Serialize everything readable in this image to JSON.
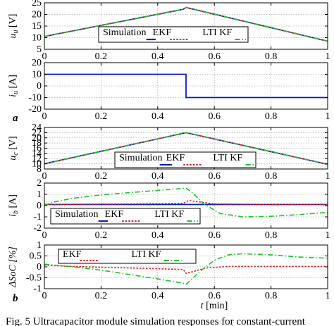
{
  "colors": {
    "simulation": "#0b1fb8",
    "ekf": "#e02020",
    "lti_kf": "#1fbf2f",
    "grid": "#b0b0b0"
  },
  "panel_letters": {
    "a": "a",
    "b": "b"
  },
  "caption": "Fig. 5  Ultracapacitor module simulation responses for constant-current",
  "chart_data": [
    {
      "type": "line",
      "ylabel": "u_u [V]",
      "ylabel_main": "u",
      "ylabel_sub": "u",
      "ylabel_unit": " [V]",
      "xlim": [
        0,
        1
      ],
      "ylim": [
        5,
        25
      ],
      "xticks": [
        "0",
        "0.2",
        "0.4",
        "0.6",
        "0.8",
        "1"
      ],
      "yticks": [
        "5",
        "10",
        "15",
        "20",
        "25"
      ],
      "grid": true,
      "legend": "center",
      "series": [
        {
          "name": "Simulation",
          "style": "solid",
          "x": [
            0,
            0.49,
            0.5,
            1
          ],
          "y": [
            10.5,
            22.2,
            23.0,
            8.5
          ]
        },
        {
          "name": "EKF",
          "style": "dotted",
          "x": [
            0,
            0.49,
            0.5,
            1
          ],
          "y": [
            10.5,
            22.2,
            23.0,
            8.5
          ]
        },
        {
          "name": "LTI KF",
          "style": "dashdot",
          "x": [
            0,
            0.49,
            0.5,
            1
          ],
          "y": [
            10.5,
            22.2,
            23.0,
            8.5
          ]
        }
      ]
    },
    {
      "type": "line",
      "ylabel": "i_u [A]",
      "ylabel_main": "i",
      "ylabel_sub": "u",
      "ylabel_unit": " [A]",
      "xlim": [
        0,
        1
      ],
      "ylim": [
        -20,
        20
      ],
      "xticks": [
        "0",
        "0.2",
        "0.4",
        "0.6",
        "0.8",
        "1"
      ],
      "yticks": [
        "-20",
        "-10",
        "0",
        "10",
        "20"
      ],
      "grid": true,
      "legend": "none",
      "series": [
        {
          "style": "solid",
          "x": [
            0,
            0.5,
            0.5,
            1
          ],
          "y": [
            10,
            10,
            -10,
            -10
          ]
        }
      ]
    },
    {
      "type": "line",
      "ylabel": "u_c [V]",
      "ylabel_main": "u",
      "ylabel_sub": "c",
      "ylabel_unit": " [V]",
      "xlim": [
        0,
        1
      ],
      "ylim": [
        8,
        24
      ],
      "xticks": [
        "0",
        "0.2",
        "0.4",
        "0.6",
        "0.8",
        "1"
      ],
      "yticks": [
        "8",
        "10",
        "12",
        "14",
        "16",
        "18",
        "20",
        "22",
        "24"
      ],
      "grid": true,
      "legend": "bottom-center",
      "series": [
        {
          "name": "Simulation",
          "style": "solid",
          "x": [
            0,
            0.5,
            1
          ],
          "y": [
            10,
            22,
            9.8
          ]
        },
        {
          "name": "EKF",
          "style": "dotted",
          "x": [
            0,
            0.5,
            1
          ],
          "y": [
            10,
            22,
            9.8
          ]
        },
        {
          "name": "LTI KF",
          "style": "dashdot",
          "x": [
            0,
            0.5,
            1
          ],
          "y": [
            10,
            22,
            9.8
          ]
        }
      ]
    },
    {
      "type": "line",
      "ylabel": "i_b [A]",
      "ylabel_main": "i",
      "ylabel_sub": "b",
      "ylabel_unit": " [A]",
      "xlim": [
        0,
        1
      ],
      "ylim": [
        -2,
        2
      ],
      "xticks": [
        "0",
        "0.2",
        "0.4",
        "0.6",
        "0.8",
        "1"
      ],
      "yticks": [
        "-2",
        "-1",
        "0",
        "1",
        "2"
      ],
      "grid": true,
      "legend": "bottom-left",
      "series": [
        {
          "name": "Simulation",
          "style": "solid",
          "x": [
            0,
            1
          ],
          "y": [
            0.1,
            0.1
          ]
        },
        {
          "name": "EKF",
          "style": "dotted",
          "x": [
            0,
            0.1,
            0.3,
            0.49,
            0.51,
            0.6,
            0.8,
            1
          ],
          "y": [
            0.1,
            0.12,
            0.15,
            0.2,
            0.45,
            0.15,
            0.1,
            0.1
          ]
        },
        {
          "name": "LTI KF",
          "style": "dashdot",
          "x": [
            0,
            0.03,
            0.1,
            0.2,
            0.3,
            0.4,
            0.5,
            0.52,
            0.56,
            0.62,
            0.7,
            0.8,
            0.9,
            1
          ],
          "y": [
            0.0,
            0.3,
            0.65,
            0.95,
            1.15,
            1.35,
            1.55,
            1.2,
            0.2,
            -0.7,
            -1.0,
            -0.95,
            -0.8,
            -0.6
          ]
        }
      ]
    },
    {
      "type": "line",
      "ylabel": "ΔSoC [%]",
      "xlabel_main": "t",
      "xlabel_unit": " [min]",
      "xlim": [
        0,
        1
      ],
      "ylim": [
        -1,
        1
      ],
      "xticks": [
        "0",
        "0.2",
        "0.4",
        "0.6",
        "0.8",
        "1"
      ],
      "yticks": [
        "-1",
        "-0.5",
        "0",
        "0.5",
        "1"
      ],
      "grid": true,
      "legend": "top-center",
      "series": [
        {
          "name": "EKF",
          "style": "dotted",
          "x": [
            0,
            0.1,
            0.3,
            0.49,
            0.5,
            0.53,
            0.57,
            0.65,
            0.8,
            1
          ],
          "y": [
            0.08,
            0.02,
            -0.05,
            -0.12,
            -0.3,
            -0.2,
            -0.05,
            0.02,
            0.02,
            0.02
          ]
        },
        {
          "name": "LTI KF",
          "style": "dashdot",
          "x": [
            0,
            0.1,
            0.2,
            0.3,
            0.4,
            0.49,
            0.5,
            0.55,
            0.6,
            0.65,
            0.7,
            0.8,
            0.9,
            1
          ],
          "y": [
            0.12,
            0.0,
            -0.15,
            -0.35,
            -0.55,
            -0.75,
            -0.8,
            -0.2,
            0.3,
            0.55,
            0.6,
            0.55,
            0.45,
            0.4
          ]
        }
      ]
    }
  ]
}
